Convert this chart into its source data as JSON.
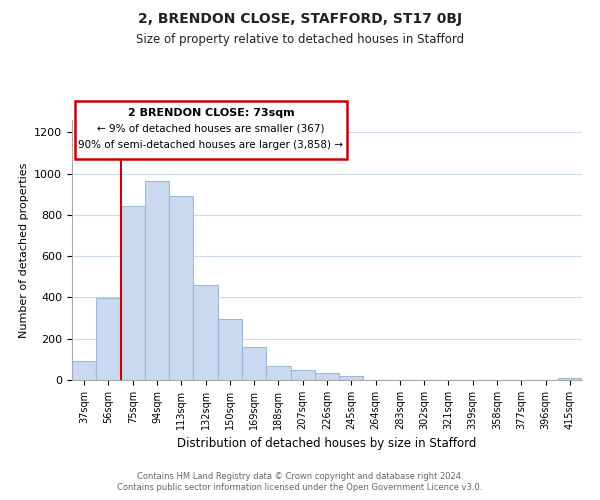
{
  "title_line1": "2, BRENDON CLOSE, STAFFORD, ST17 0BJ",
  "title_line2": "Size of property relative to detached houses in Stafford",
  "xlabel": "Distribution of detached houses by size in Stafford",
  "ylabel": "Number of detached properties",
  "categories": [
    "37sqm",
    "56sqm",
    "75sqm",
    "94sqm",
    "113sqm",
    "132sqm",
    "150sqm",
    "169sqm",
    "188sqm",
    "207sqm",
    "226sqm",
    "245sqm",
    "264sqm",
    "283sqm",
    "302sqm",
    "321sqm",
    "339sqm",
    "358sqm",
    "377sqm",
    "396sqm",
    "415sqm"
  ],
  "values": [
    90,
    395,
    845,
    965,
    890,
    460,
    298,
    158,
    70,
    50,
    32,
    17,
    0,
    0,
    0,
    0,
    0,
    0,
    0,
    0,
    10
  ],
  "bar_color": "#c9d9f0",
  "bar_edge_color": "#a0b8d8",
  "vline_color": "#cc0000",
  "vline_x": 1.5,
  "annotation_title": "2 BRENDON CLOSE: 73sqm",
  "annotation_line1": "← 9% of detached houses are smaller (367)",
  "annotation_line2": "90% of semi-detached houses are larger (3,858) →",
  "annotation_box_edge": "#cc0000",
  "ylim": [
    0,
    1260
  ],
  "yticks": [
    0,
    200,
    400,
    600,
    800,
    1000,
    1200
  ],
  "footer_line1": "Contains HM Land Registry data © Crown copyright and database right 2024.",
  "footer_line2": "Contains public sector information licensed under the Open Government Licence v3.0.",
  "bg_color": "#ffffff",
  "grid_color": "#ccdaeb"
}
